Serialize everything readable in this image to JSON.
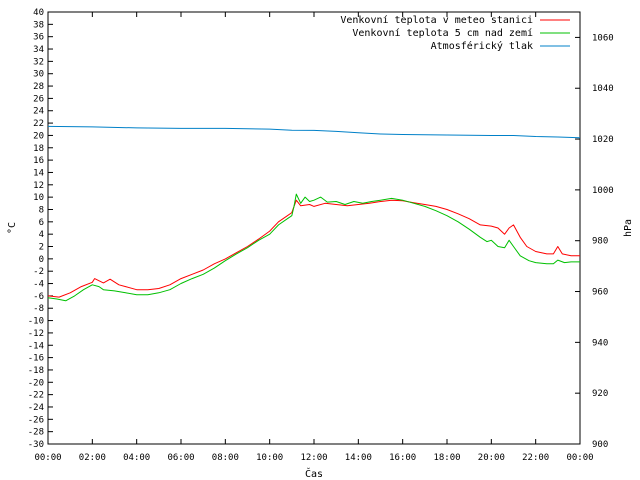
{
  "chart_data": {
    "type": "line",
    "xlabel": "Čas",
    "ylabel": "°C",
    "y2label": "hPa",
    "x_ticks": [
      "00:00",
      "02:00",
      "04:00",
      "06:00",
      "08:00",
      "10:00",
      "12:00",
      "14:00",
      "16:00",
      "18:00",
      "20:00",
      "22:00",
      "00:00"
    ],
    "x_range_hours": [
      0,
      24
    ],
    "ylim": [
      -30,
      40
    ],
    "y_tick_step": 2,
    "y2lim": [
      900,
      1070
    ],
    "y2_ticks": [
      900,
      920,
      940,
      960,
      980,
      1000,
      1020,
      1040,
      1060
    ],
    "grid": false,
    "legend_position": "top-right",
    "series": [
      {
        "name": "Venkovní teplota v meteo stanici",
        "color": "#ff0000",
        "axis": "left",
        "points": [
          [
            0,
            -6
          ],
          [
            0.5,
            -6.2
          ],
          [
            1,
            -5.5
          ],
          [
            1.5,
            -4.5
          ],
          [
            2,
            -3.8
          ],
          [
            2.1,
            -3.2
          ],
          [
            2.5,
            -3.9
          ],
          [
            2.8,
            -3.3
          ],
          [
            3.2,
            -4.2
          ],
          [
            3.5,
            -4.5
          ],
          [
            4,
            -5
          ],
          [
            4.5,
            -5
          ],
          [
            5,
            -4.8
          ],
          [
            5.5,
            -4.2
          ],
          [
            6,
            -3.2
          ],
          [
            6.5,
            -2.5
          ],
          [
            7,
            -1.8
          ],
          [
            7.5,
            -0.8
          ],
          [
            8,
            0
          ],
          [
            8.5,
            1
          ],
          [
            9,
            2
          ],
          [
            9.5,
            3.2
          ],
          [
            10,
            4.5
          ],
          [
            10.4,
            6
          ],
          [
            10.8,
            7
          ],
          [
            11,
            7.5
          ],
          [
            11.2,
            9.5
          ],
          [
            11.4,
            8.6
          ],
          [
            11.8,
            8.8
          ],
          [
            12,
            8.5
          ],
          [
            12.5,
            9
          ],
          [
            13,
            8.8
          ],
          [
            13.5,
            8.6
          ],
          [
            14,
            8.8
          ],
          [
            14.5,
            9
          ],
          [
            15,
            9.3
          ],
          [
            15.5,
            9.5
          ],
          [
            16,
            9.4
          ],
          [
            16.5,
            9.1
          ],
          [
            17,
            8.8
          ],
          [
            17.5,
            8.5
          ],
          [
            18,
            8
          ],
          [
            18.5,
            7.3
          ],
          [
            19,
            6.5
          ],
          [
            19.5,
            5.5
          ],
          [
            20,
            5.3
          ],
          [
            20.3,
            5
          ],
          [
            20.6,
            4
          ],
          [
            20.8,
            5
          ],
          [
            21,
            5.5
          ],
          [
            21.3,
            3.5
          ],
          [
            21.6,
            2
          ],
          [
            22,
            1.2
          ],
          [
            22.5,
            0.8
          ],
          [
            22.8,
            0.8
          ],
          [
            23,
            2
          ],
          [
            23.2,
            0.8
          ],
          [
            23.6,
            0.5
          ],
          [
            24,
            0.5
          ]
        ]
      },
      {
        "name": "Venkovní teplota 5 cm nad zemí",
        "color": "#00c000",
        "axis": "left",
        "points": [
          [
            0,
            -6.3
          ],
          [
            0.4,
            -6.5
          ],
          [
            0.8,
            -6.8
          ],
          [
            1.2,
            -6
          ],
          [
            1.6,
            -5
          ],
          [
            2,
            -4.2
          ],
          [
            2.3,
            -4.5
          ],
          [
            2.5,
            -5
          ],
          [
            3,
            -5.2
          ],
          [
            3.5,
            -5.5
          ],
          [
            4,
            -5.8
          ],
          [
            4.5,
            -5.8
          ],
          [
            5,
            -5.5
          ],
          [
            5.5,
            -5
          ],
          [
            6,
            -4
          ],
          [
            6.5,
            -3.2
          ],
          [
            7,
            -2.5
          ],
          [
            7.5,
            -1.5
          ],
          [
            8,
            -0.3
          ],
          [
            8.5,
            0.8
          ],
          [
            9,
            1.8
          ],
          [
            9.5,
            3
          ],
          [
            10,
            4
          ],
          [
            10.4,
            5.5
          ],
          [
            10.8,
            6.5
          ],
          [
            11,
            7
          ],
          [
            11.1,
            8.5
          ],
          [
            11.2,
            10.5
          ],
          [
            11.4,
            9
          ],
          [
            11.6,
            10
          ],
          [
            11.8,
            9.3
          ],
          [
            12,
            9.5
          ],
          [
            12.3,
            10
          ],
          [
            12.6,
            9.2
          ],
          [
            13,
            9.3
          ],
          [
            13.4,
            8.8
          ],
          [
            13.8,
            9.3
          ],
          [
            14.2,
            9
          ],
          [
            14.6,
            9.3
          ],
          [
            15,
            9.5
          ],
          [
            15.5,
            9.8
          ],
          [
            16,
            9.5
          ],
          [
            16.5,
            9
          ],
          [
            17,
            8.5
          ],
          [
            17.5,
            7.8
          ],
          [
            18,
            7
          ],
          [
            18.5,
            6
          ],
          [
            19,
            4.8
          ],
          [
            19.5,
            3.5
          ],
          [
            19.8,
            2.8
          ],
          [
            20,
            3
          ],
          [
            20.3,
            2
          ],
          [
            20.6,
            1.8
          ],
          [
            20.8,
            3
          ],
          [
            21,
            2
          ],
          [
            21.3,
            0.5
          ],
          [
            21.7,
            -0.3
          ],
          [
            22,
            -0.6
          ],
          [
            22.5,
            -0.8
          ],
          [
            22.8,
            -0.8
          ],
          [
            23,
            -0.2
          ],
          [
            23.3,
            -0.6
          ],
          [
            23.6,
            -0.5
          ],
          [
            24,
            -0.5
          ]
        ]
      },
      {
        "name": "Atmosférický tlak",
        "color": "#0080c8",
        "axis": "right",
        "points": [
          [
            0,
            1025
          ],
          [
            2,
            1024.8
          ],
          [
            4,
            1024.4
          ],
          [
            6,
            1024.2
          ],
          [
            8,
            1024.2
          ],
          [
            10,
            1023.9
          ],
          [
            11,
            1023.5
          ],
          [
            12,
            1023.4
          ],
          [
            13,
            1023
          ],
          [
            14,
            1022.5
          ],
          [
            15,
            1022
          ],
          [
            16,
            1021.8
          ],
          [
            17,
            1021.7
          ],
          [
            18,
            1021.6
          ],
          [
            19,
            1021.5
          ],
          [
            20,
            1021.4
          ],
          [
            21,
            1021.4
          ],
          [
            22,
            1021
          ],
          [
            23,
            1020.8
          ],
          [
            24,
            1020.5
          ]
        ]
      }
    ]
  }
}
